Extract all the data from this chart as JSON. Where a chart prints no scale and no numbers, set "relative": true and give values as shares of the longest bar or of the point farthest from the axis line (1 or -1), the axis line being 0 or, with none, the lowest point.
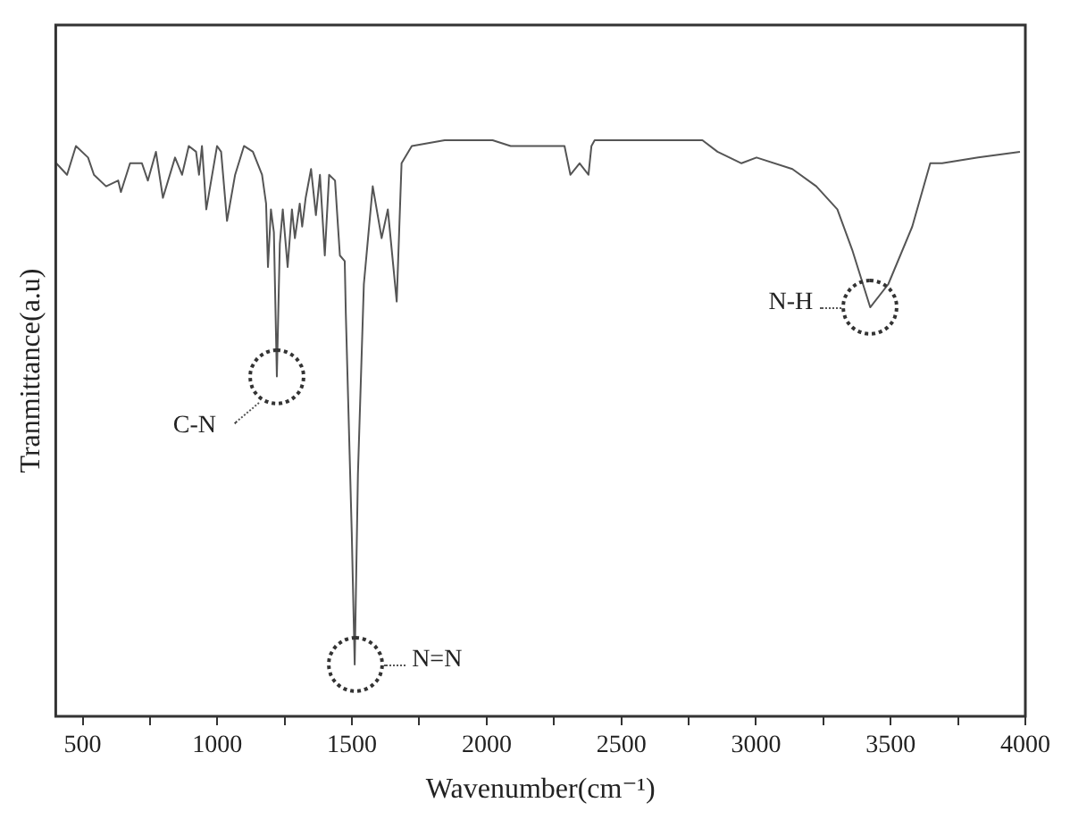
{
  "chart_data": {
    "type": "line",
    "xlabel": "Wavenumber(cm⁻¹)",
    "ylabel": "Tranmittance(a.u)",
    "relative": true,
    "grid": false,
    "legend": false,
    "marker": "none",
    "line_style": "solid",
    "xlim": [
      400,
      4000
    ],
    "xticks": [
      500,
      {
        "value": 750,
        "label": null
      },
      1000,
      {
        "value": 1250,
        "label": null
      },
      1500,
      {
        "value": 1750,
        "label": null
      },
      2000,
      {
        "value": 2250,
        "label": null
      },
      2500,
      {
        "value": 2750,
        "label": null
      },
      3000,
      {
        "value": 3250,
        "label": null
      },
      3500,
      {
        "value": 3750,
        "label": null
      },
      4000
    ],
    "series": [
      {
        "color": "#555555",
        "x": [
          402,
          442,
          475,
          520,
          542,
          587,
          632,
          642,
          676,
          720,
          742,
          772,
          798,
          843,
          869,
          894,
          921,
          932,
          943,
          959,
          999,
          1014,
          1036,
          1066,
          1099,
          1132,
          1166,
          1181,
          1188,
          1199,
          1210,
          1221,
          1232,
          1243,
          1261,
          1277,
          1288,
          1306,
          1315,
          1328,
          1348,
          1366,
          1381,
          1399,
          1415,
          1437,
          1455,
          1473,
          1477,
          1499,
          1510,
          1522,
          1544,
          1577,
          1610,
          1633,
          1666,
          1684,
          1722,
          1844,
          2022,
          2089,
          2267,
          2289,
          2311,
          2345,
          2378,
          2389,
          2401,
          2801,
          2857,
          2946,
          3002,
          3135,
          3224,
          3302,
          3357,
          3424,
          3491,
          3580,
          3647,
          3691,
          3825,
          3980
        ],
        "values": [
          0.96,
          0.94,
          0.99,
          0.97,
          0.94,
          0.92,
          0.93,
          0.91,
          0.96,
          0.96,
          0.93,
          0.98,
          0.9,
          0.97,
          0.94,
          0.99,
          0.98,
          0.94,
          0.99,
          0.88,
          0.99,
          0.98,
          0.86,
          0.94,
          0.99,
          0.98,
          0.94,
          0.89,
          0.78,
          0.88,
          0.84,
          0.59,
          0.82,
          0.88,
          0.78,
          0.88,
          0.83,
          0.89,
          0.85,
          0.9,
          0.95,
          0.87,
          0.94,
          0.8,
          0.94,
          0.93,
          0.8,
          0.79,
          0.7,
          0.32,
          0.09,
          0.42,
          0.75,
          0.92,
          0.83,
          0.88,
          0.72,
          0.96,
          0.99,
          1.0,
          1.0,
          0.99,
          0.99,
          0.99,
          0.94,
          0.96,
          0.94,
          0.99,
          1.0,
          1.0,
          0.98,
          0.96,
          0.97,
          0.95,
          0.92,
          0.88,
          0.81,
          0.71,
          0.75,
          0.85,
          0.96,
          0.96,
          0.97,
          0.98
        ]
      }
    ],
    "annotations": [
      {
        "text": "C-N",
        "x": 1221,
        "y": 0.59
      },
      {
        "text": "N=N",
        "x": 1510,
        "y": 0.09
      },
      {
        "text": "N-H",
        "x": 3424,
        "y": 0.71
      }
    ]
  }
}
